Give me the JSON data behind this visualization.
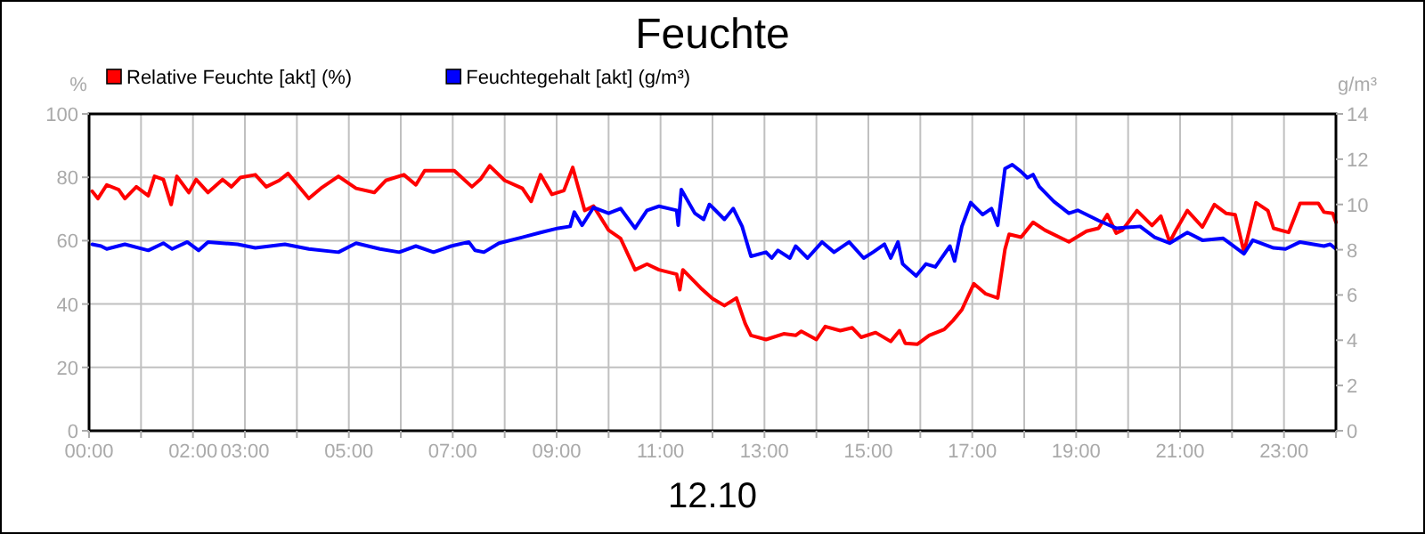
{
  "chart_data": {
    "type": "line",
    "title": "Feuchte",
    "xlabel": "12.10",
    "ylabel": "%",
    "y2label": "g/m³",
    "xlim": [
      0,
      24
    ],
    "xticks": [
      {
        "value": 0,
        "label": "00:00"
      },
      {
        "value": 1,
        "label": null
      },
      {
        "value": 2,
        "label": "02:00"
      },
      {
        "value": 3,
        "label": "03:00"
      },
      {
        "value": 4,
        "label": null
      },
      {
        "value": 5,
        "label": "05:00"
      },
      {
        "value": 6,
        "label": null
      },
      {
        "value": 7,
        "label": "07:00"
      },
      {
        "value": 8,
        "label": null
      },
      {
        "value": 9,
        "label": "09:00"
      },
      {
        "value": 10,
        "label": null
      },
      {
        "value": 11,
        "label": "11:00"
      },
      {
        "value": 12,
        "label": null
      },
      {
        "value": 13,
        "label": "13:00"
      },
      {
        "value": 14,
        "label": null
      },
      {
        "value": 15,
        "label": "15:00"
      },
      {
        "value": 16,
        "label": null
      },
      {
        "value": 17,
        "label": "17:00"
      },
      {
        "value": 18,
        "label": null
      },
      {
        "value": 19,
        "label": "19:00"
      },
      {
        "value": 20,
        "label": null
      },
      {
        "value": 21,
        "label": "21:00"
      },
      {
        "value": 22,
        "label": null
      },
      {
        "value": 23,
        "label": "23:00"
      },
      {
        "value": 24,
        "label": null
      }
    ],
    "ylim": [
      0,
      100
    ],
    "yticks": [
      0,
      20,
      40,
      60,
      80,
      100
    ],
    "y2lim": [
      0,
      14
    ],
    "y2ticks": [
      0,
      2,
      4,
      6,
      8,
      10,
      12,
      14
    ],
    "grid": true,
    "legend": "top left",
    "marker": "none",
    "series": [
      {
        "name": "Relative Feuchte [akt] (%)",
        "color": "#ff0000",
        "axis": "y",
        "x": [
          0.06,
          0.17,
          0.34,
          0.57,
          0.69,
          0.91,
          1.14,
          1.26,
          1.43,
          1.58,
          1.69,
          1.92,
          2.06,
          2.29,
          2.57,
          2.74,
          2.91,
          3.2,
          3.41,
          3.66,
          3.83,
          4.23,
          4.46,
          4.8,
          5.14,
          5.49,
          5.71,
          6.06,
          6.29,
          6.46,
          7.03,
          7.37,
          7.54,
          7.71,
          8.0,
          8.34,
          8.51,
          8.69,
          8.91,
          9.14,
          9.31,
          9.54,
          9.71,
          10.0,
          10.23,
          10.51,
          10.74,
          10.97,
          11.31,
          11.37,
          11.43,
          11.77,
          12.0,
          12.23,
          12.46,
          12.63,
          12.74,
          13.03,
          13.37,
          13.6,
          13.71,
          14.0,
          14.17,
          14.46,
          14.69,
          14.86,
          15.14,
          15.43,
          15.6,
          15.71,
          15.94,
          16.17,
          16.46,
          16.63,
          16.8,
          17.03,
          17.26,
          17.49,
          17.63,
          17.71,
          17.94,
          18.17,
          18.4,
          18.86,
          19.2,
          19.43,
          19.6,
          19.77,
          19.89,
          20.17,
          20.46,
          20.63,
          20.8,
          20.91,
          21.14,
          21.43,
          21.66,
          21.89,
          22.06,
          22.23,
          22.46,
          22.69,
          22.8,
          23.09,
          23.31,
          23.66,
          23.77,
          23.94,
          24.0
        ],
        "values": [
          75.6,
          73.3,
          77.6,
          76.1,
          73.3,
          77,
          74.2,
          80.3,
          79.3,
          71.4,
          80.3,
          75.2,
          79.3,
          75.2,
          79.3,
          77,
          79.9,
          80.8,
          77,
          79,
          81.2,
          73.3,
          76.5,
          80.3,
          76.5,
          75.2,
          79,
          80.8,
          77.6,
          82.1,
          82.1,
          77,
          79.5,
          83.6,
          79,
          76.5,
          72.4,
          80.8,
          74.6,
          75.8,
          83.1,
          69.5,
          70.9,
          63.3,
          60.7,
          50.8,
          52.6,
          50.8,
          49.4,
          44.5,
          50.8,
          45.1,
          41.7,
          39.5,
          41.9,
          33.8,
          30.1,
          28.8,
          30.6,
          30.1,
          31.4,
          28.8,
          32.9,
          31.6,
          32.5,
          29.5,
          31,
          28.2,
          31.6,
          27.6,
          27.3,
          30.1,
          32,
          34.8,
          38.2,
          46.4,
          43.2,
          41.9,
          57.3,
          62,
          61.1,
          65.8,
          63.3,
          59.6,
          63,
          63.9,
          68.2,
          62.4,
          63.3,
          69.5,
          64.8,
          67.7,
          59.6,
          63,
          69.5,
          64.3,
          71.4,
          68.6,
          68.2,
          56.4,
          72,
          69.5,
          63.9,
          62.6,
          71.8,
          71.8,
          69,
          68.6,
          65.8
        ]
      },
      {
        "name": "Feuchtegehalt [akt] (g/m³)",
        "color": "#0000ff",
        "axis": "y2",
        "x": [
          0.06,
          0.23,
          0.34,
          0.69,
          1.14,
          1.43,
          1.6,
          1.89,
          2.11,
          2.29,
          2.86,
          3.2,
          3.77,
          4.23,
          4.8,
          5.14,
          5.6,
          5.97,
          6.29,
          6.63,
          6.97,
          7.31,
          7.43,
          7.6,
          7.89,
          8.34,
          8.69,
          9.03,
          9.26,
          9.34,
          9.49,
          9.71,
          10.0,
          10.23,
          10.51,
          10.74,
          10.97,
          11.31,
          11.34,
          11.4,
          11.66,
          11.83,
          11.94,
          12.0,
          12.23,
          12.4,
          12.57,
          12.74,
          13.03,
          13.14,
          13.26,
          13.49,
          13.6,
          13.83,
          14.11,
          14.34,
          14.63,
          14.91,
          15.09,
          15.31,
          15.43,
          15.57,
          15.66,
          15.92,
          16.11,
          16.29,
          16.57,
          16.66,
          16.8,
          16.97,
          17.2,
          17.37,
          17.49,
          17.63,
          17.77,
          17.94,
          18.06,
          18.17,
          18.29,
          18.57,
          18.86,
          19.03,
          19.43,
          19.77,
          20.23,
          20.51,
          20.8,
          21.14,
          21.43,
          21.83,
          22.23,
          22.4,
          22.8,
          23.03,
          23.31,
          23.77,
          23.89,
          24.0
        ],
        "values": [
          8.24,
          8.16,
          8.03,
          8.24,
          7.97,
          8.29,
          8.03,
          8.34,
          7.97,
          8.34,
          8.24,
          8.08,
          8.24,
          8.03,
          7.89,
          8.29,
          8.03,
          7.89,
          8.16,
          7.89,
          8.16,
          8.34,
          7.97,
          7.89,
          8.29,
          8.55,
          8.76,
          8.95,
          9.03,
          9.66,
          9.08,
          9.87,
          9.61,
          9.82,
          8.95,
          9.74,
          9.92,
          9.74,
          9.08,
          10.66,
          9.61,
          9.34,
          10.0,
          9.87,
          9.34,
          9.82,
          9.03,
          7.71,
          7.89,
          7.63,
          7.97,
          7.63,
          8.16,
          7.63,
          8.34,
          7.89,
          8.34,
          7.63,
          7.89,
          8.24,
          7.63,
          8.34,
          7.37,
          6.84,
          7.37,
          7.24,
          8.16,
          7.5,
          9.03,
          10.08,
          9.55,
          9.82,
          9.08,
          11.58,
          11.76,
          11.45,
          11.18,
          11.32,
          10.79,
          10.13,
          9.61,
          9.74,
          9.29,
          8.95,
          9.03,
          8.55,
          8.29,
          8.76,
          8.42,
          8.5,
          7.82,
          8.42,
          8.08,
          8.03,
          8.34,
          8.16,
          8.24,
          8.03
        ]
      }
    ]
  }
}
